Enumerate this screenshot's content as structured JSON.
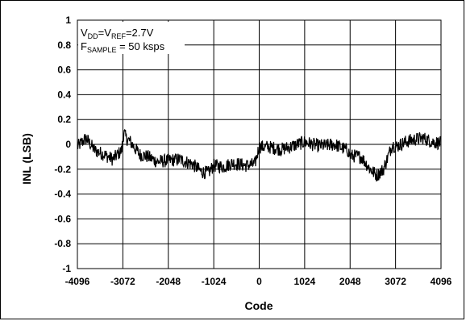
{
  "chart_data": {
    "type": "line",
    "title": "",
    "xlabel": "Code",
    "ylabel": "INL (LSB)",
    "xlim": [
      -4096,
      4096
    ],
    "ylim": [
      -1,
      1
    ],
    "x_ticks": [
      "-4096",
      "-3072",
      "-2048",
      "-1024",
      "0",
      "1024",
      "2048",
      "3072",
      "4096"
    ],
    "y_ticks": [
      "1",
      "0.8",
      "0.6",
      "0.4",
      "0.2",
      "0",
      "-0.2",
      "-0.4",
      "-0.6",
      "-0.8",
      "-1"
    ],
    "grid": true,
    "legend": "none",
    "line_color": "#000000",
    "annotations": {
      "line1": {
        "v": "V",
        "dd": "DD",
        "eq1": "=V",
        "ref": "REF",
        "val": "=2.7V"
      },
      "line2": {
        "f": "F",
        "sample": "SAMPLE",
        "val": " = 50 ksps"
      }
    },
    "series": [
      {
        "x": [
          -4096,
          -3900,
          -3700,
          -3500,
          -3300,
          -3100,
          -3050,
          -3000,
          -2900,
          -2700,
          -2500,
          -2300,
          -2048,
          -1800,
          -1500,
          -1300,
          -1150,
          -1024,
          -800,
          -600,
          -300,
          -100,
          0,
          200,
          500,
          700,
          1024,
          1300,
          1500,
          1700,
          2000,
          2048,
          2300,
          2500,
          2650,
          2800,
          3000,
          3072,
          3300,
          3500,
          3700,
          3900,
          4096
        ],
        "y": [
          -0.02,
          0.05,
          -0.05,
          -0.08,
          -0.12,
          -0.05,
          0.1,
          0.05,
          0.02,
          -0.08,
          -0.1,
          -0.14,
          -0.13,
          -0.12,
          -0.16,
          -0.22,
          -0.23,
          -0.17,
          -0.18,
          -0.15,
          -0.17,
          -0.16,
          -0.02,
          -0.02,
          -0.04,
          -0.02,
          0.02,
          -0.01,
          -0.01,
          0.0,
          -0.05,
          -0.09,
          -0.1,
          -0.2,
          -0.25,
          -0.2,
          0.0,
          -0.02,
          0.02,
          0.04,
          0.05,
          0.02,
          0.01
        ]
      }
    ]
  }
}
